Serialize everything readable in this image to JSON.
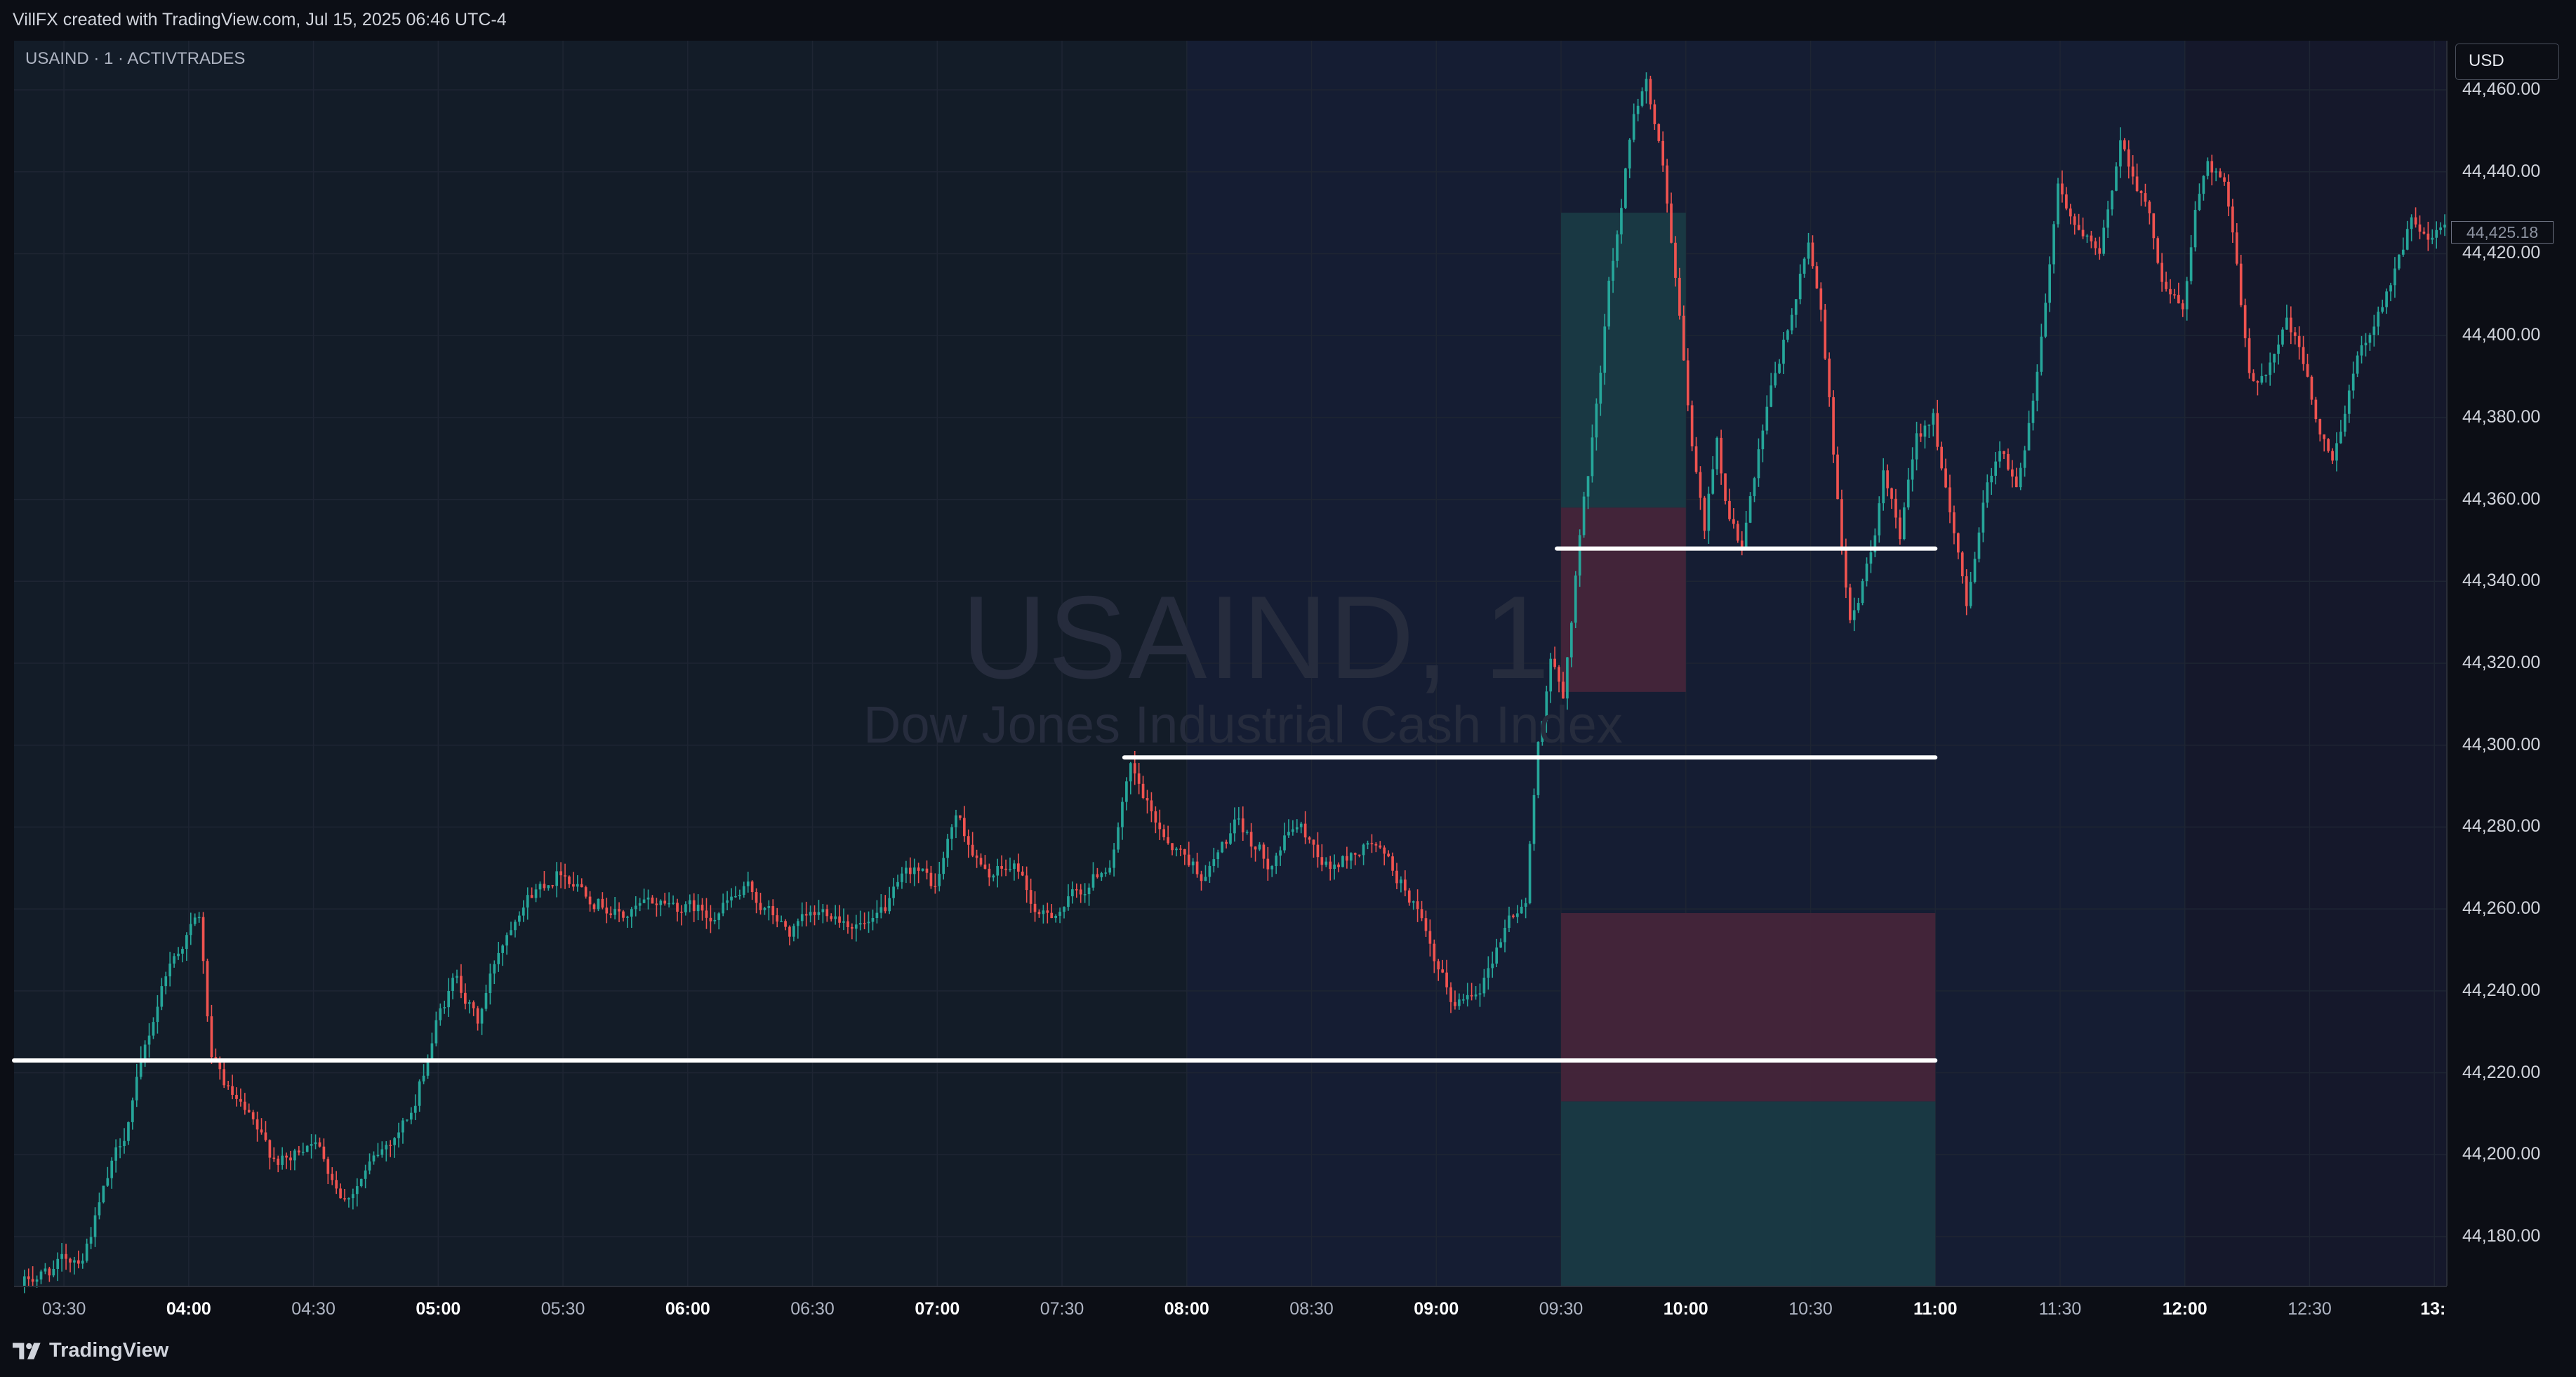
{
  "header": {
    "attribution": "VillFX created with TradingView.com, Jul 15, 2025 06:46 UTC-4"
  },
  "legend": {
    "symbol_label": "USAIND · 1 · ACTIVTRADES"
  },
  "watermark": {
    "symbol": "USAIND, 1",
    "name": "Dow Jones Industrial Cash Index"
  },
  "price_scale": {
    "currency": "USD",
    "last_price": "44,425.18",
    "labels": [
      "44,460.00",
      "44,440.00",
      "44,420.00",
      "44,400.00",
      "44,380.00",
      "44,360.00",
      "44,340.00",
      "44,320.00",
      "44,300.00",
      "44,280.00",
      "44,260.00",
      "44,240.00",
      "44,220.00",
      "44,200.00",
      "44,180.00"
    ]
  },
  "time_scale": {
    "labels": [
      {
        "text": "03:30",
        "major": false
      },
      {
        "text": "04:00",
        "major": true
      },
      {
        "text": "04:30",
        "major": false
      },
      {
        "text": "05:00",
        "major": true
      },
      {
        "text": "05:30",
        "major": false
      },
      {
        "text": "06:00",
        "major": true
      },
      {
        "text": "06:30",
        "major": false
      },
      {
        "text": "07:00",
        "major": true
      },
      {
        "text": "07:30",
        "major": false
      },
      {
        "text": "08:00",
        "major": true
      },
      {
        "text": "08:30",
        "major": false
      },
      {
        "text": "09:00",
        "major": true
      },
      {
        "text": "09:30",
        "major": false
      },
      {
        "text": "10:00",
        "major": true
      },
      {
        "text": "10:30",
        "major": false
      },
      {
        "text": "11:00",
        "major": true
      },
      {
        "text": "11:30",
        "major": false
      },
      {
        "text": "12:00",
        "major": true
      },
      {
        "text": "12:30",
        "major": false
      },
      {
        "text": "13:",
        "major": true
      }
    ]
  },
  "footer": {
    "brand": "TradingView"
  },
  "colors": {
    "up": "#26a69a",
    "down": "#ef5350",
    "pane_pre": "#131c28",
    "pane_session": "#151d33",
    "pane_late": "#15182b",
    "zone_green": "#193a45",
    "zone_red": "#44253a",
    "level_line": "#ffffff"
  },
  "chart_data": {
    "type": "candlestick",
    "timeframe": "1",
    "y_range": [
      44168,
      44472
    ],
    "x_range": [
      "03:18",
      "13:03"
    ],
    "key_path": [
      [
        "03:20",
        44168
      ],
      [
        "03:35",
        44176
      ],
      [
        "03:45",
        44205
      ],
      [
        "03:55",
        44245
      ],
      [
        "04:00",
        44254
      ],
      [
        "04:03",
        44258
      ],
      [
        "04:06",
        44222
      ],
      [
        "04:10",
        44215
      ],
      [
        "04:20",
        44200
      ],
      [
        "04:25",
        44198
      ],
      [
        "04:30",
        44205
      ],
      [
        "04:38",
        44190
      ],
      [
        "04:45",
        44198
      ],
      [
        "04:55",
        44212
      ],
      [
        "05:00",
        44232
      ],
      [
        "05:05",
        44244
      ],
      [
        "05:10",
        44232
      ],
      [
        "05:15",
        44250
      ],
      [
        "05:20",
        44262
      ],
      [
        "05:30",
        44270
      ],
      [
        "05:40",
        44262
      ],
      [
        "05:45",
        44258
      ],
      [
        "05:55",
        44262
      ],
      [
        "06:05",
        44259
      ],
      [
        "06:15",
        44264
      ],
      [
        "06:25",
        44254
      ],
      [
        "06:35",
        44260
      ],
      [
        "06:45",
        44255
      ],
      [
        "06:55",
        44270
      ],
      [
        "07:00",
        44265
      ],
      [
        "07:05",
        44283
      ],
      [
        "07:12",
        44268
      ],
      [
        "07:20",
        44270
      ],
      [
        "07:25",
        44257
      ],
      [
        "07:35",
        44264
      ],
      [
        "07:42",
        44272
      ],
      [
        "07:47",
        44293
      ],
      [
        "07:52",
        44282
      ],
      [
        "07:58",
        44275
      ],
      [
        "08:05",
        44268
      ],
      [
        "08:12",
        44280
      ],
      [
        "08:20",
        44272
      ],
      [
        "08:27",
        44281
      ],
      [
        "08:35",
        44270
      ],
      [
        "08:45",
        44276
      ],
      [
        "08:55",
        44262
      ],
      [
        "09:00",
        44245
      ],
      [
        "09:05",
        44236
      ],
      [
        "09:12",
        44244
      ],
      [
        "09:18",
        44258
      ],
      [
        "09:22",
        44262
      ],
      [
        "09:25",
        44300
      ],
      [
        "09:28",
        44322
      ],
      [
        "09:31",
        44310
      ],
      [
        "09:35",
        44352
      ],
      [
        "09:38",
        44374
      ],
      [
        "09:42",
        44412
      ],
      [
        "09:45",
        44432
      ],
      [
        "09:48",
        44456
      ],
      [
        "09:51",
        44463
      ],
      [
        "09:55",
        44440
      ],
      [
        "09:58",
        44412
      ],
      [
        "10:02",
        44372
      ],
      [
        "10:05",
        44352
      ],
      [
        "10:08",
        44376
      ],
      [
        "10:10",
        44360
      ],
      [
        "10:14",
        44348
      ],
      [
        "10:18",
        44370
      ],
      [
        "10:22",
        44390
      ],
      [
        "10:26",
        44405
      ],
      [
        "10:30",
        44422
      ],
      [
        "10:33",
        44408
      ],
      [
        "10:36",
        44372
      ],
      [
        "10:40",
        44330
      ],
      [
        "10:45",
        44346
      ],
      [
        "10:48",
        44365
      ],
      [
        "10:52",
        44350
      ],
      [
        "10:56",
        44374
      ],
      [
        "11:00",
        44382
      ],
      [
        "11:04",
        44355
      ],
      [
        "11:08",
        44335
      ],
      [
        "11:12",
        44360
      ],
      [
        "11:16",
        44374
      ],
      [
        "11:20",
        44362
      ],
      [
        "11:25",
        44392
      ],
      [
        "11:30",
        44438
      ],
      [
        "11:35",
        44425
      ],
      [
        "11:40",
        44418
      ],
      [
        "11:45",
        44448
      ],
      [
        "11:50",
        44436
      ],
      [
        "11:55",
        44415
      ],
      [
        "12:00",
        44406
      ],
      [
        "12:03",
        44430
      ],
      [
        "12:06",
        44444
      ],
      [
        "12:10",
        44438
      ],
      [
        "12:13",
        44416
      ],
      [
        "12:16",
        44388
      ],
      [
        "12:20",
        44392
      ],
      [
        "12:25",
        44404
      ],
      [
        "12:30",
        44390
      ],
      [
        "12:33",
        44375
      ],
      [
        "12:36",
        44368
      ],
      [
        "12:40",
        44388
      ],
      [
        "12:45",
        44402
      ],
      [
        "12:50",
        44414
      ],
      [
        "12:55",
        44428
      ],
      [
        "13:00",
        44422
      ],
      [
        "13:02",
        44425
      ]
    ],
    "horizontal_levels": [
      {
        "price": 44348,
        "from": "09:29",
        "to": "11:00"
      },
      {
        "price": 44297,
        "from": "07:45",
        "to": "11:00"
      },
      {
        "price": 44223,
        "from": "03:18",
        "to": "11:00"
      }
    ],
    "zones": [
      {
        "fill": "green",
        "from": "09:30",
        "to": "10:00",
        "price_top": 44430,
        "price_bottom": 44358
      },
      {
        "fill": "red",
        "from": "09:30",
        "to": "10:00",
        "price_top": 44358,
        "price_bottom": 44313
      },
      {
        "fill": "red",
        "from": "09:30",
        "to": "11:00",
        "price_top": 44259,
        "price_bottom": 44213
      },
      {
        "fill": "green",
        "from": "09:30",
        "to": "11:00",
        "price_top": 44213,
        "price_bottom": 44168
      }
    ],
    "session_breaks": [
      "08:00",
      "12:00"
    ]
  }
}
